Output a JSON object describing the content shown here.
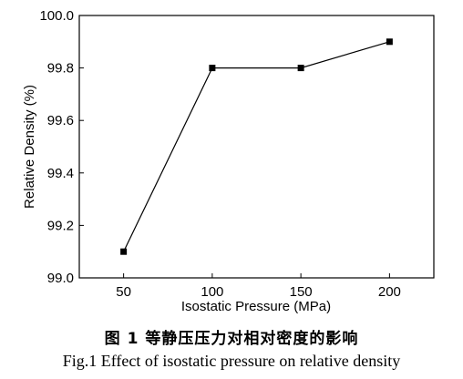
{
  "chart_data": {
    "type": "line",
    "xlabel": "Isostatic Pressure (MPa)",
    "ylabel": "Relative Density (%)",
    "xlim": [
      25,
      225
    ],
    "ylim": [
      99.0,
      100.0
    ],
    "x_ticks": [
      50,
      100,
      150,
      200
    ],
    "y_ticks": [
      99.0,
      99.2,
      99.4,
      99.6,
      99.8,
      100.0
    ],
    "x_tick_labels": [
      "50",
      "100",
      "150",
      "200"
    ],
    "y_tick_labels": [
      "99.0",
      "99.2",
      "99.4",
      "99.6",
      "99.8",
      "100.0"
    ],
    "grid": false,
    "legend": "none",
    "marker": "square",
    "line_color": "#000000",
    "series": [
      {
        "x": [
          50,
          100,
          150,
          200
        ],
        "values": [
          99.1,
          99.8,
          99.8,
          99.9
        ]
      }
    ]
  },
  "caption": {
    "cn": "图 1   等静压压力对相对密度的影响",
    "en": "Fig.1 Effect of isostatic pressure on relative density"
  }
}
